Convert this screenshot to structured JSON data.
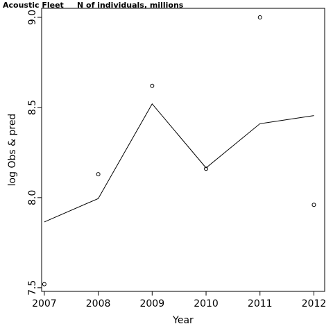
{
  "chart_data": {
    "type": "line",
    "title": "Acoustic Fleet",
    "subtitle": "N of individuals, millions",
    "xlabel": "Year",
    "ylabel": "log Obs & pred",
    "x": [
      2007,
      2008,
      2009,
      2010,
      2011,
      2012
    ],
    "xlim": [
      2006.95,
      2012.2
    ],
    "ylim": [
      7.48,
      9.05
    ],
    "x_ticks": [
      2007,
      2008,
      2009,
      2010,
      2011,
      2012
    ],
    "y_ticks": [
      7.5,
      8.0,
      8.5,
      9.0
    ],
    "y_tick_labels": [
      "7.5",
      "8.0",
      "8.5",
      "9.0"
    ],
    "grid": false,
    "series": [
      {
        "style": "points",
        "values": [
          7.52,
          8.13,
          8.62,
          8.16,
          9.0,
          7.96
        ]
      },
      {
        "style": "line",
        "values": [
          7.865,
          7.995,
          8.52,
          8.165,
          8.41,
          8.455
        ]
      }
    ],
    "colors": {
      "stroke": "#000000",
      "background": "#ffffff"
    }
  }
}
